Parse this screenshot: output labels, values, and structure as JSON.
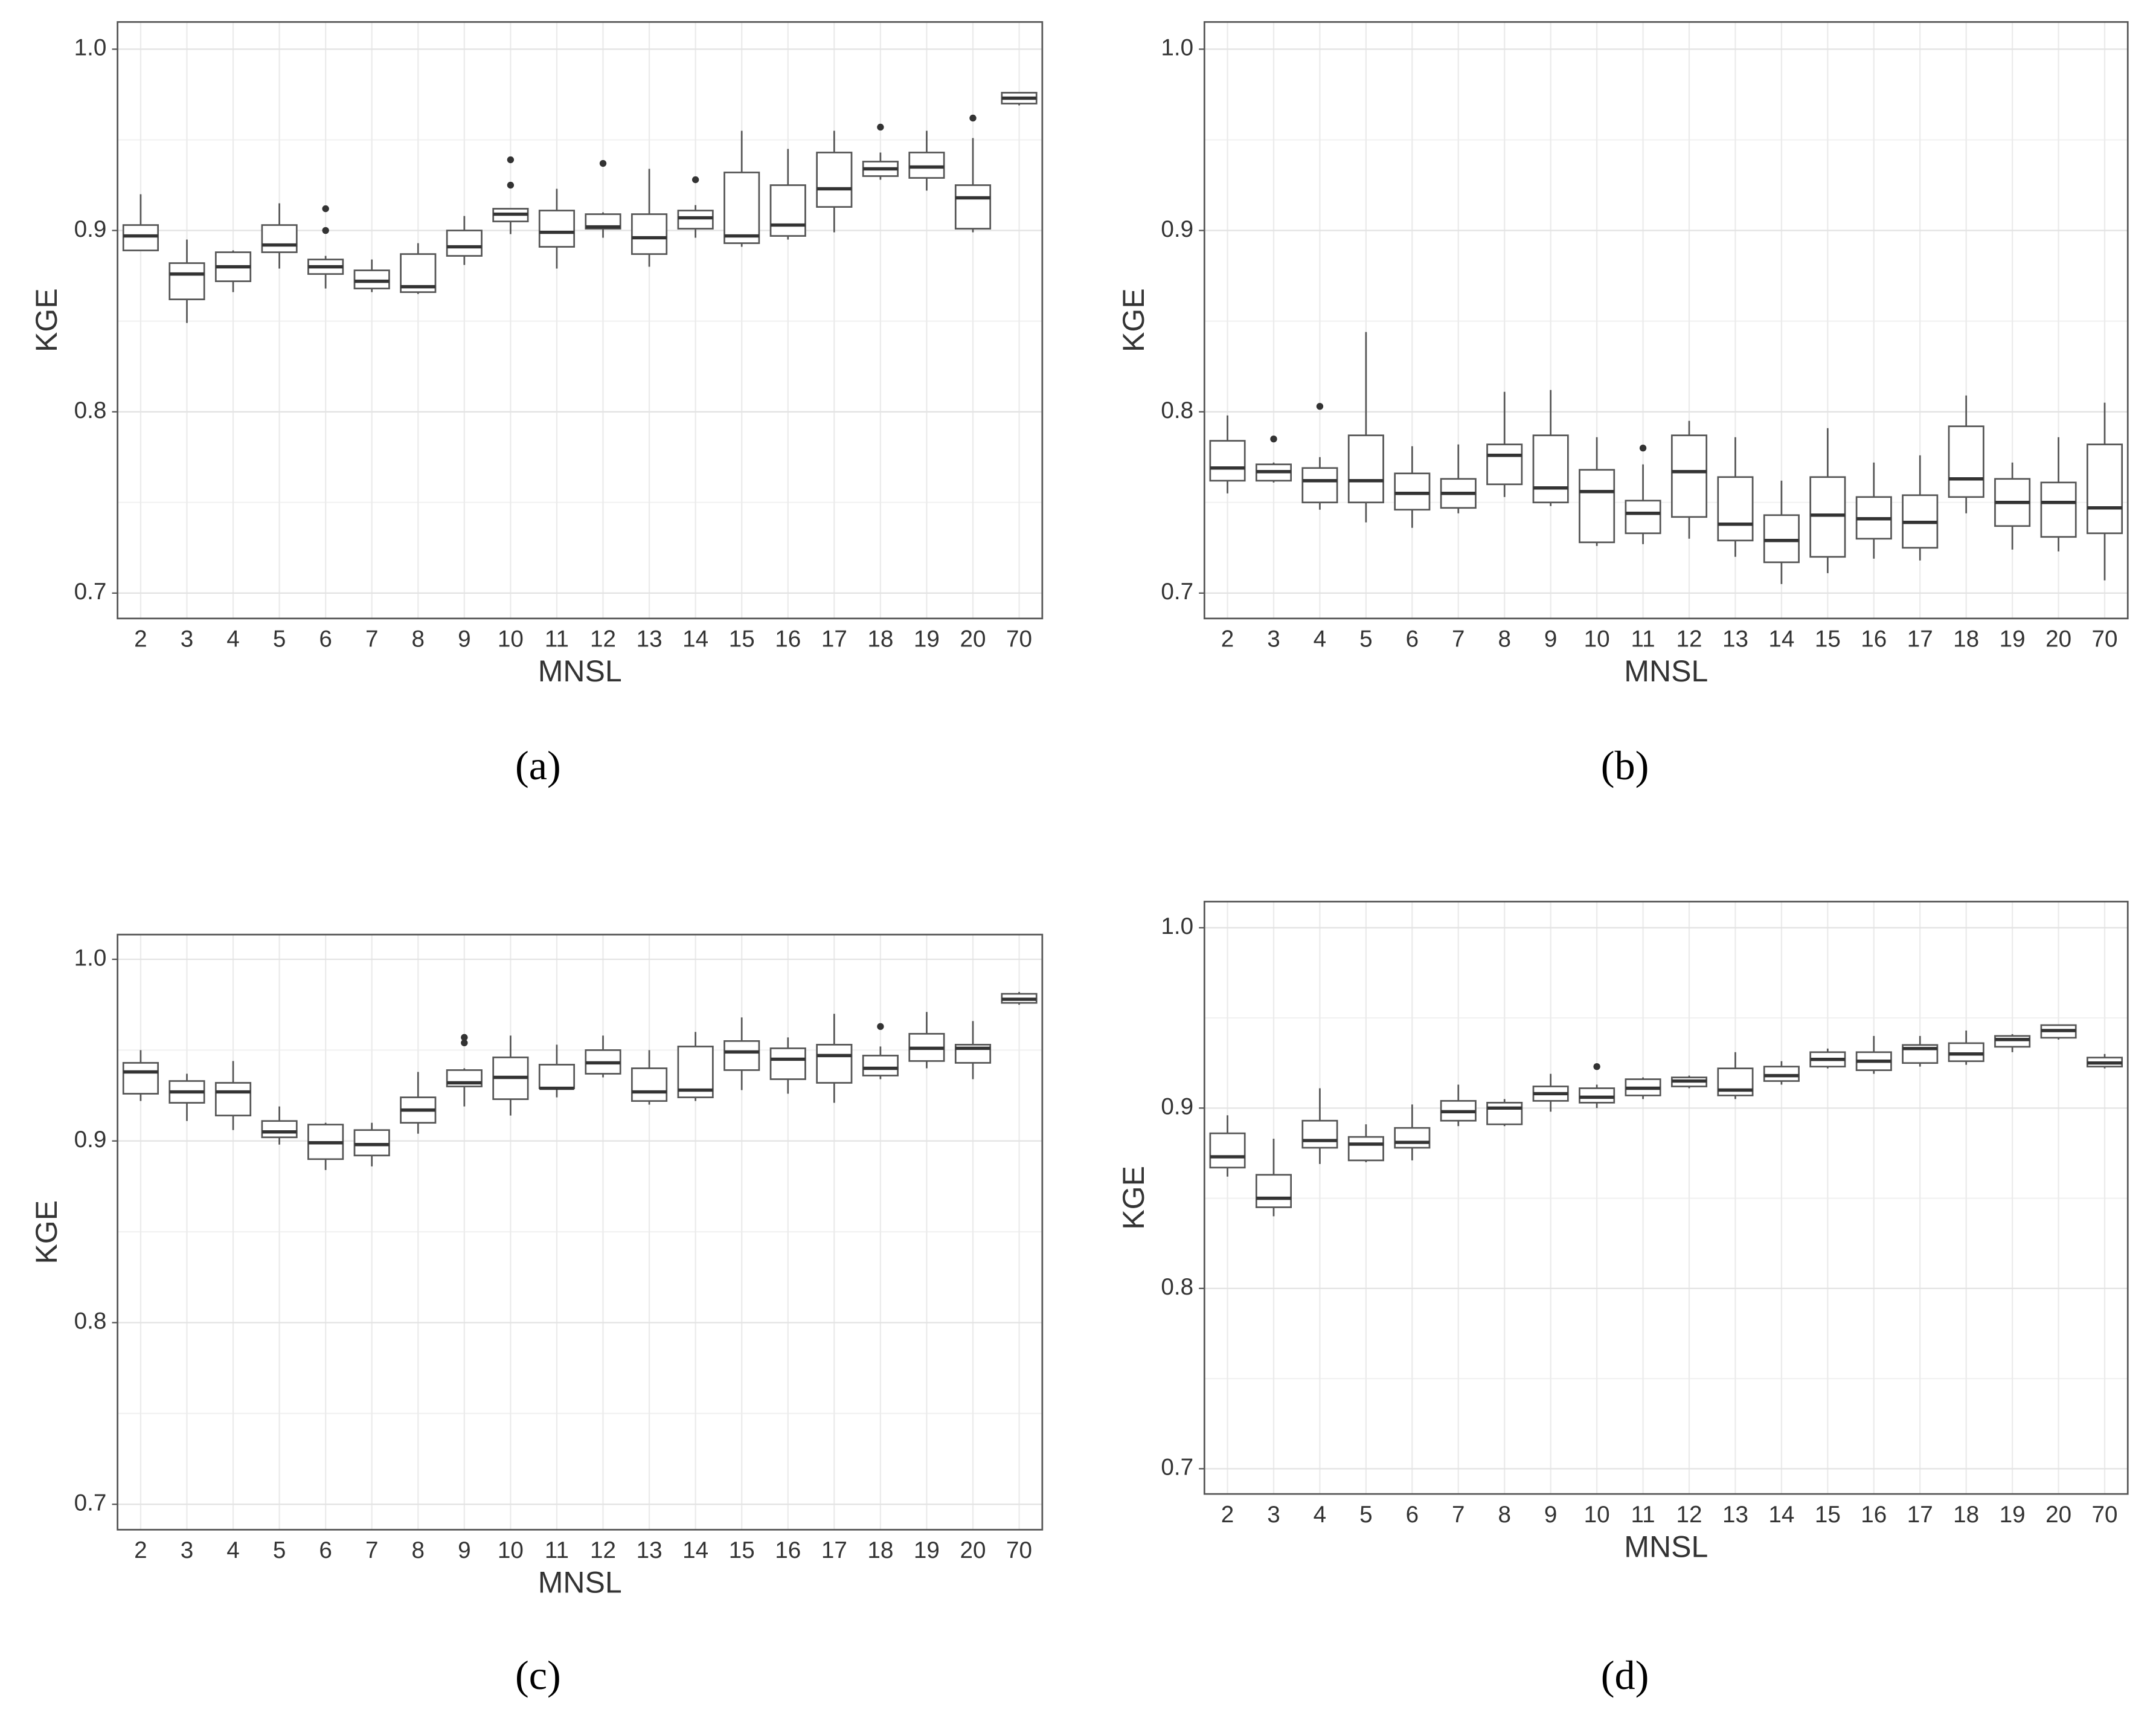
{
  "chart_data": [
    {
      "type": "box",
      "caption": "(a)",
      "xlabel": "MNSL",
      "ylabel": "KGE",
      "categories": [
        "2",
        "3",
        "4",
        "5",
        "6",
        "7",
        "8",
        "9",
        "10",
        "11",
        "12",
        "13",
        "14",
        "15",
        "16",
        "17",
        "18",
        "19",
        "20",
        "70"
      ],
      "ylim": [
        0.686,
        1.015
      ],
      "yticks": [
        0.7,
        0.8,
        0.9,
        {
          "value": 1,
          "label": "1.0"
        }
      ],
      "grid": true,
      "color": "#555555",
      "low": [
        0.889,
        0.849,
        0.866,
        0.879,
        0.868,
        0.866,
        0.865,
        0.881,
        0.898,
        0.879,
        0.896,
        0.88,
        0.896,
        0.891,
        0.895,
        0.899,
        0.928,
        0.922,
        0.899,
        0.969
      ],
      "q1": [
        0.889,
        0.862,
        0.872,
        0.888,
        0.876,
        0.868,
        0.866,
        0.886,
        0.905,
        0.891,
        0.901,
        0.887,
        0.901,
        0.893,
        0.897,
        0.913,
        0.93,
        0.929,
        0.901,
        0.97
      ],
      "median": [
        0.897,
        0.876,
        0.88,
        0.892,
        0.88,
        0.872,
        0.869,
        0.891,
        0.909,
        0.899,
        0.902,
        0.896,
        0.907,
        0.897,
        0.903,
        0.923,
        0.934,
        0.935,
        0.918,
        0.973
      ],
      "q3": [
        0.903,
        0.882,
        0.888,
        0.903,
        0.884,
        0.878,
        0.887,
        0.9,
        0.912,
        0.911,
        0.909,
        0.909,
        0.911,
        0.932,
        0.925,
        0.943,
        0.938,
        0.943,
        0.925,
        0.976
      ],
      "high": [
        0.92,
        0.895,
        0.889,
        0.915,
        0.886,
        0.884,
        0.893,
        0.908,
        0.912,
        0.923,
        0.91,
        0.934,
        0.914,
        0.955,
        0.945,
        0.955,
        0.943,
        0.955,
        0.951,
        0.976
      ],
      "outliers": [
        [],
        [],
        [],
        [],
        [
          0.9,
          0.912
        ],
        [],
        [],
        [],
        [
          0.925,
          0.939
        ],
        [],
        [
          0.937
        ],
        [],
        [
          0.928
        ],
        [],
        [],
        [],
        [
          0.957
        ],
        [],
        [
          0.962
        ],
        []
      ]
    },
    {
      "type": "box",
      "caption": "(b)",
      "xlabel": "MNSL",
      "ylabel": "KGE",
      "categories": [
        "2",
        "3",
        "4",
        "5",
        "6",
        "7",
        "8",
        "9",
        "10",
        "11",
        "12",
        "13",
        "14",
        "15",
        "16",
        "17",
        "18",
        "19",
        "20",
        "70"
      ],
      "ylim": [
        0.686,
        1.015
      ],
      "yticks": [
        0.7,
        0.8,
        0.9,
        {
          "value": 1,
          "label": "1.0"
        }
      ],
      "grid": true,
      "color": "#555555",
      "low": [
        0.755,
        0.761,
        0.746,
        0.739,
        0.736,
        0.744,
        0.753,
        0.748,
        0.726,
        0.727,
        0.73,
        0.72,
        0.705,
        0.711,
        0.719,
        0.718,
        0.744,
        0.724,
        0.723,
        0.707
      ],
      "q1": [
        0.762,
        0.762,
        0.75,
        0.75,
        0.746,
        0.747,
        0.76,
        0.75,
        0.728,
        0.733,
        0.742,
        0.729,
        0.717,
        0.72,
        0.73,
        0.725,
        0.753,
        0.737,
        0.731,
        0.733
      ],
      "median": [
        0.769,
        0.767,
        0.762,
        0.762,
        0.755,
        0.755,
        0.776,
        0.758,
        0.756,
        0.744,
        0.767,
        0.738,
        0.729,
        0.743,
        0.741,
        0.739,
        0.763,
        0.75,
        0.75,
        0.747
      ],
      "q3": [
        0.784,
        0.771,
        0.769,
        0.787,
        0.766,
        0.763,
        0.782,
        0.787,
        0.768,
        0.751,
        0.787,
        0.764,
        0.743,
        0.764,
        0.753,
        0.754,
        0.792,
        0.763,
        0.761,
        0.782
      ],
      "high": [
        0.798,
        0.772,
        0.775,
        0.844,
        0.781,
        0.782,
        0.811,
        0.812,
        0.786,
        0.771,
        0.795,
        0.786,
        0.762,
        0.791,
        0.772,
        0.776,
        0.809,
        0.772,
        0.786,
        0.805
      ],
      "outliers": [
        [],
        [
          0.785
        ],
        [
          0.803
        ],
        [],
        [],
        [],
        [],
        [],
        [],
        [
          0.78
        ],
        [],
        [],
        [],
        [],
        [],
        [],
        [],
        [],
        [],
        []
      ]
    },
    {
      "type": "box",
      "caption": "(c)",
      "xlabel": "MNSL",
      "ylabel": "KGE",
      "categories": [
        "2",
        "3",
        "4",
        "5",
        "6",
        "7",
        "8",
        "9",
        "10",
        "11",
        "12",
        "13",
        "14",
        "15",
        "16",
        "17",
        "18",
        "19",
        "20",
        "70"
      ],
      "ylim": [
        0.686,
        1.0136
      ],
      "yticks": [
        0.7,
        0.8,
        0.9,
        {
          "value": 1,
          "label": "1.0"
        }
      ],
      "grid": true,
      "color": "#555555",
      "low": [
        0.922,
        0.911,
        0.906,
        0.898,
        0.884,
        0.886,
        0.904,
        0.919,
        0.914,
        0.924,
        0.935,
        0.92,
        0.922,
        0.928,
        0.926,
        0.921,
        0.934,
        0.94,
        0.934,
        0.975
      ],
      "q1": [
        0.926,
        0.921,
        0.914,
        0.902,
        0.89,
        0.892,
        0.91,
        0.93,
        0.923,
        0.929,
        0.937,
        0.922,
        0.924,
        0.939,
        0.934,
        0.932,
        0.936,
        0.944,
        0.943,
        0.976
      ],
      "median": [
        0.938,
        0.927,
        0.927,
        0.905,
        0.899,
        0.898,
        0.917,
        0.932,
        0.935,
        0.929,
        0.943,
        0.927,
        0.928,
        0.949,
        0.945,
        0.947,
        0.94,
        0.951,
        0.951,
        0.978
      ],
      "q3": [
        0.943,
        0.933,
        0.932,
        0.911,
        0.909,
        0.906,
        0.924,
        0.939,
        0.946,
        0.942,
        0.95,
        0.94,
        0.952,
        0.955,
        0.951,
        0.953,
        0.947,
        0.959,
        0.953,
        0.981
      ],
      "high": [
        0.95,
        0.937,
        0.944,
        0.919,
        0.91,
        0.91,
        0.938,
        0.94,
        0.958,
        0.953,
        0.958,
        0.95,
        0.96,
        0.968,
        0.957,
        0.97,
        0.952,
        0.971,
        0.966,
        0.982
      ],
      "outliers": [
        [],
        [],
        [],
        [],
        [],
        [],
        [],
        [
          0.954,
          0.957
        ],
        [],
        [],
        [],
        [],
        [],
        [],
        [],
        [],
        [
          0.963
        ],
        [],
        [],
        []
      ]
    },
    {
      "type": "box",
      "caption": "(d)",
      "xlabel": "MNSL",
      "ylabel": "KGE",
      "categories": [
        "2",
        "3",
        "4",
        "5",
        "6",
        "7",
        "8",
        "9",
        "10",
        "11",
        "12",
        "13",
        "14",
        "15",
        "16",
        "17",
        "18",
        "19",
        "20",
        "70"
      ],
      "ylim": [
        0.686,
        1.0145
      ],
      "yticks": [
        0.7,
        0.8,
        0.9,
        {
          "value": 1,
          "label": "1.0"
        }
      ],
      "grid": true,
      "color": "#555555",
      "low": [
        0.862,
        0.84,
        0.869,
        0.87,
        0.871,
        0.89,
        0.89,
        0.898,
        0.9,
        0.905,
        0.911,
        0.905,
        0.913,
        0.922,
        0.919,
        0.923,
        0.924,
        0.931,
        0.938,
        0.922
      ],
      "q1": [
        0.867,
        0.845,
        0.878,
        0.871,
        0.878,
        0.893,
        0.891,
        0.904,
        0.903,
        0.907,
        0.912,
        0.907,
        0.915,
        0.923,
        0.921,
        0.925,
        0.926,
        0.934,
        0.939,
        0.923
      ],
      "median": [
        0.873,
        0.85,
        0.882,
        0.88,
        0.881,
        0.898,
        0.9,
        0.908,
        0.906,
        0.911,
        0.915,
        0.91,
        0.918,
        0.927,
        0.926,
        0.933,
        0.93,
        0.938,
        0.943,
        0.925
      ],
      "q3": [
        0.886,
        0.863,
        0.893,
        0.884,
        0.889,
        0.904,
        0.903,
        0.912,
        0.911,
        0.916,
        0.917,
        0.922,
        0.923,
        0.931,
        0.931,
        0.935,
        0.936,
        0.94,
        0.946,
        0.928
      ],
      "high": [
        0.896,
        0.883,
        0.911,
        0.891,
        0.902,
        0.913,
        0.905,
        0.919,
        0.913,
        0.917,
        0.918,
        0.931,
        0.926,
        0.933,
        0.94,
        0.94,
        0.943,
        0.941,
        0.946,
        0.93
      ],
      "outliers": [
        [],
        [],
        [],
        [],
        [],
        [],
        [],
        [],
        [
          0.923
        ],
        [],
        [],
        [],
        [],
        [],
        [],
        [],
        [],
        [],
        [],
        []
      ]
    }
  ]
}
